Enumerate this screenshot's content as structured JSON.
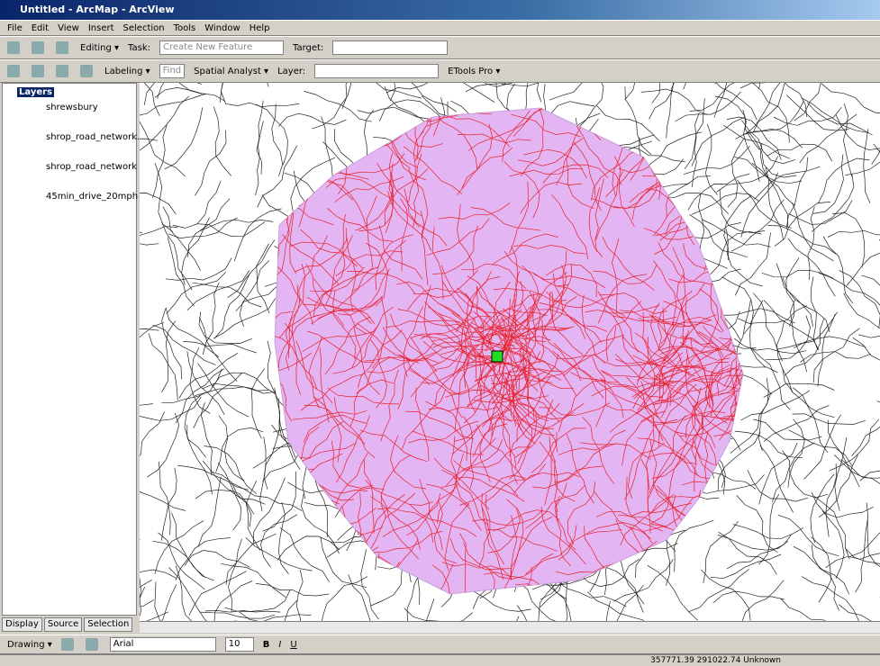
{
  "window": {
    "title": "Untitled - ArcMap - ArcView"
  },
  "menu": [
    "File",
    "Edit",
    "View",
    "Insert",
    "Selection",
    "Tools",
    "Window",
    "Help"
  ],
  "editor_toolbar": {
    "editing": "Editing ▾",
    "task_label": "Task:",
    "task": "Create New Feature",
    "target_label": "Target:"
  },
  "toolbar2": {
    "labeling": "Labeling ▾",
    "find": "Find",
    "spatial_analyst": "Spatial Analyst ▾",
    "layer_label": "Layer:",
    "etools": "ETools Pro ▾"
  },
  "toc": {
    "title": "Layers",
    "layers": [
      "shrewsbury",
      "shrop_road_network.sek",
      "shrop_road_network",
      "45min_drive_20mph"
    ],
    "tabs": [
      "Display",
      "Source",
      "Selection"
    ]
  },
  "drawing_toolbar": {
    "drawing": "Drawing ▾",
    "font": "Arial",
    "size": "10",
    "bold": "B",
    "italic": "I",
    "underline": "U"
  },
  "status": "357771.39  291022.74 Unknown"
}
